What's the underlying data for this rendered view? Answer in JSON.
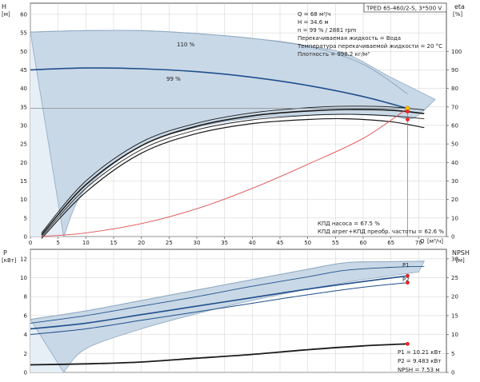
{
  "colors": {
    "band_fill": "#c9d8e6",
    "band_edge": "#8fa9c2",
    "light_fill": "#e6eef6",
    "curve_dark": "#1a1a1a",
    "curve_blue": "#1f4f8c",
    "curve_red": "#e05050",
    "marker_red": "#e8262a",
    "marker_yellow": "#f2c200",
    "grid": "#cfcfcf",
    "ref_line": "#888888"
  },
  "chart_data": [
    {
      "type": "line",
      "title": "TPED 65-460/2-S, 3*500 V",
      "xlabel": "Q [м³/ч]",
      "x_unit_label": "Q",
      "x_unit": "[м³/ч]",
      "ylabel": "H",
      "y_unit": "[м]",
      "y2label": "eta",
      "y2_unit": "[%]",
      "xlim": [
        0,
        75
      ],
      "ylim": [
        0,
        63
      ],
      "y2lim": [
        0,
        126
      ],
      "x_ticks": [
        0,
        5,
        10,
        15,
        20,
        25,
        30,
        35,
        40,
        45,
        50,
        55,
        60,
        65,
        70
      ],
      "y_ticks": [
        0,
        5,
        10,
        15,
        20,
        25,
        30,
        35,
        40,
        45,
        50,
        55,
        60
      ],
      "y2_ticks": [
        0,
        10,
        20,
        30,
        40,
        50,
        60,
        70,
        80,
        90,
        100
      ],
      "grid": true,
      "operating_point": {
        "q": 68,
        "h": 34.6
      },
      "info_lines": [
        "Q = 68 м³/ч",
        "H = 34.6 м",
        "n = 99 % / 2881 rpm",
        "Перекачиваемая жидкость = Вода",
        "Температура перекачиваемой жидкости = 20 °C",
        "Плотность = 998.2 кг/м³"
      ],
      "efficiency_lines": [
        "КПД насоса = 67.5 %",
        "КПД агрег+КПД преобр. частоты = 62.6 %"
      ],
      "curve_labels": [
        "110 %",
        "99 %"
      ],
      "band": {
        "top_x": [
          0,
          10,
          20,
          30,
          40,
          50,
          57,
          65,
          73
        ],
        "top_y": [
          55.2,
          55.6,
          55.6,
          54.8,
          53.5,
          51.4,
          49.3,
          43.0,
          37.0
        ],
        "bottom_x": [
          6,
          10,
          20,
          30,
          40,
          50,
          57,
          65,
          69,
          73
        ],
        "bottom_y": [
          0,
          13,
          24.5,
          29.5,
          32,
          32.8,
          33,
          32.5,
          32,
          37
        ]
      },
      "series": [
        {
          "x": [
            0,
            10,
            20,
            30,
            40,
            50,
            60,
            68
          ],
          "y": [
            55.2,
            55.6,
            55.6,
            54.8,
            53.5,
            51.4,
            46.5,
            38.5
          ]
        },
        {
          "x": [
            0,
            10,
            20,
            30,
            40,
            50,
            60,
            68
          ],
          "y": [
            45.0,
            45.5,
            45.3,
            44.5,
            43.0,
            40.8,
            37.8,
            34.6
          ]
        },
        {
          "x": [
            2,
            10,
            20,
            30,
            40,
            50,
            57,
            65,
            71
          ],
          "y": [
            1,
            15,
            25.5,
            30.6,
            33.4,
            34.8,
            35.2,
            35.0,
            34.2
          ]
        },
        {
          "x": [
            2,
            10,
            20,
            30,
            40,
            50,
            57,
            65,
            71
          ],
          "y": [
            0.5,
            14,
            24.5,
            29.8,
            32.6,
            33.9,
            34.3,
            34.1,
            33.2
          ]
        },
        {
          "x": [
            2,
            10,
            20,
            30,
            40,
            50,
            57,
            65,
            71
          ],
          "y": [
            0,
            13,
            23.5,
            28.8,
            31.5,
            32.7,
            33.0,
            32.6,
            31.8
          ]
        },
        {
          "x": [
            2,
            10,
            20,
            30,
            40,
            50,
            57,
            65,
            71
          ],
          "y": [
            -0.5,
            12,
            22.5,
            27.8,
            30.5,
            31.6,
            31.8,
            31.0,
            29.4
          ]
        },
        {
          "x": [
            2,
            10,
            20,
            30,
            40,
            50,
            60,
            68
          ],
          "y": [
            0,
            1,
            3.5,
            7.5,
            13,
            19.5,
            26.5,
            34.6
          ]
        }
      ]
    },
    {
      "type": "line",
      "ylabel": "P",
      "y_unit": "[кВт]",
      "y2label": "NPSH",
      "y2_unit": "[м]",
      "xlim": [
        0,
        75
      ],
      "ylim": [
        0,
        13
      ],
      "y2lim": [
        0,
        32.5
      ],
      "y_ticks": [
        0,
        2,
        4,
        6,
        8,
        10,
        12
      ],
      "y2_ticks": [
        0,
        5,
        10,
        15,
        20,
        25,
        30
      ],
      "grid": true,
      "readouts": [
        "P1 = 10.21 кВт",
        "P2 = 9.483 кВт",
        "NPSH = 7.53 м"
      ],
      "curve_labels": [
        "P1",
        "P2"
      ],
      "band": {
        "top_x": [
          0,
          10,
          20,
          30,
          40,
          50,
          57,
          65,
          71
        ],
        "top_y": [
          5.6,
          6.5,
          7.6,
          8.7,
          9.8,
          10.9,
          11.6,
          11.7,
          11.75
        ],
        "bottom_x": [
          6,
          10,
          20,
          30,
          40,
          50,
          60,
          70
        ],
        "bottom_y": [
          0,
          2.5,
          4.6,
          6.2,
          7.6,
          8.8,
          9.8,
          10.6
        ]
      },
      "series": [
        {
          "x": [
            0,
            10,
            20,
            30,
            40,
            50,
            57,
            65,
            71
          ],
          "y": [
            5.6,
            6.5,
            7.6,
            8.7,
            9.8,
            10.9,
            11.6,
            11.7,
            11.75
          ]
        },
        {
          "x": [
            0,
            10,
            20,
            30,
            40,
            50,
            57,
            65,
            71
          ],
          "y": [
            5.2,
            6.0,
            7.0,
            8.0,
            9.1,
            10.1,
            10.8,
            11.1,
            11.2
          ]
        },
        {
          "x": [
            0,
            10,
            20,
            30,
            40,
            50,
            60,
            68
          ],
          "y": [
            4.6,
            5.2,
            6.1,
            7.0,
            7.9,
            8.8,
            9.6,
            10.21
          ]
        },
        {
          "x": [
            0,
            10,
            20,
            30,
            40,
            50,
            60,
            68
          ],
          "y": [
            4.0,
            4.6,
            5.5,
            6.4,
            7.3,
            8.2,
            9.0,
            9.483
          ]
        },
        {
          "x": [
            0,
            10,
            20,
            30,
            40,
            50,
            60,
            68
          ],
          "y": [
            0.8,
            0.9,
            1.1,
            1.5,
            1.9,
            2.4,
            2.8,
            3.012
          ]
        }
      ],
      "points": [
        {
          "name": "P1",
          "q": 68,
          "value": 10.21
        },
        {
          "name": "P2",
          "q": 68,
          "value": 9.483
        },
        {
          "name": "NPSH",
          "q": 68,
          "value": 7.53
        }
      ]
    }
  ]
}
